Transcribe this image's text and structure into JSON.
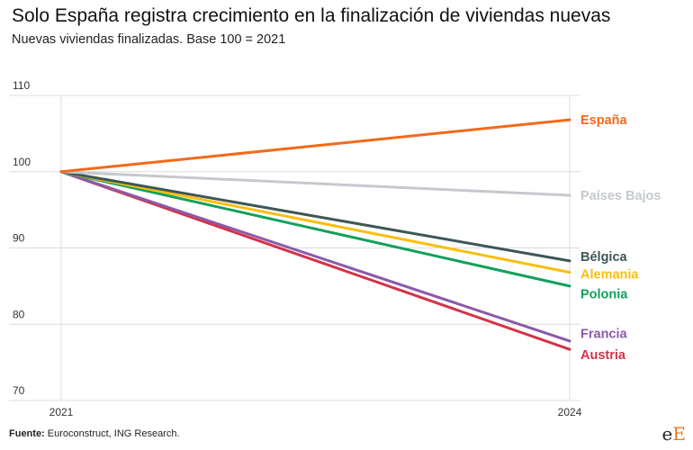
{
  "header": {
    "title": "Solo España registra crecimiento en la finalización de viviendas nuevas",
    "subtitle": "Nuevas viviendas finalizadas. Base 100 = 2021"
  },
  "footer": {
    "source_label": "Fuente:",
    "source_text": "Euroconstruct, ING Research."
  },
  "logo": {
    "text_a": "e",
    "text_b": "E"
  },
  "chart_data": {
    "type": "line",
    "title": "Solo España registra crecimiento en la finalización de viviendas nuevas",
    "subtitle": "Nuevas viviendas finalizadas. Base 100 = 2021",
    "x": [
      2021,
      2024
    ],
    "x_tick_labels": [
      "2021",
      "2024"
    ],
    "ylim": [
      70,
      110
    ],
    "y_ticks": [
      70,
      80,
      90,
      100,
      110
    ],
    "y_tick_labels": [
      "70",
      "80",
      "90",
      "100",
      "110"
    ],
    "grid": true,
    "legend": "direct-labels-right",
    "series": [
      {
        "name": "España",
        "values": [
          100,
          106.8
        ],
        "color": "#f26a1b"
      },
      {
        "name": "Países Bajos",
        "values": [
          100,
          96.9
        ],
        "color": "#c5c9ce"
      },
      {
        "name": "Bélgica",
        "values": [
          100,
          88.3
        ],
        "color": "#3e5656"
      },
      {
        "name": "Alemania",
        "values": [
          100,
          86.8
        ],
        "color": "#f9bf0f"
      },
      {
        "name": "Polonia",
        "values": [
          100,
          85.0
        ],
        "color": "#12a05a"
      },
      {
        "name": "Francia",
        "values": [
          100,
          77.8
        ],
        "color": "#8c5aa8"
      },
      {
        "name": "Austria",
        "values": [
          100,
          76.7
        ],
        "color": "#d33348"
      }
    ],
    "label_values": [
      106.8,
      96.9,
      88.9,
      86.6,
      84.0,
      78.8,
      76.0
    ]
  }
}
